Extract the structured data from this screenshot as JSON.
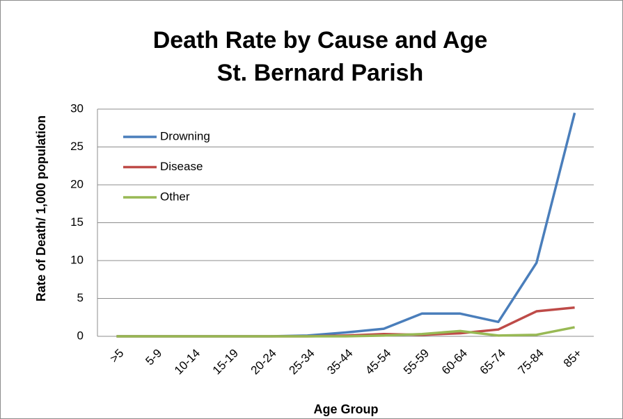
{
  "chart_data": {
    "type": "line",
    "title": "Death Rate by Cause and Age",
    "subtitle": "St. Bernard Parish",
    "x_label": "Age Group",
    "y_label": "Rate of Death/ 1,000 population",
    "categories": [
      ">5",
      "5-9",
      "10-14",
      "15-19",
      "20-24",
      "25-34",
      "35-44",
      "45-54",
      "55-59",
      "60-64",
      "65-74",
      "75-84",
      "85+"
    ],
    "series": [
      {
        "name": "Drowning",
        "color": "#4a7ebb",
        "values": [
          0,
          0,
          0,
          0,
          0,
          0.1,
          0.5,
          1.0,
          3.0,
          3.0,
          1.9,
          9.7,
          29.5
        ]
      },
      {
        "name": "Disease",
        "color": "#be4b48",
        "values": [
          0,
          0,
          0,
          0,
          0,
          0,
          0.1,
          0.3,
          0.2,
          0.4,
          0.9,
          3.3,
          3.8
        ]
      },
      {
        "name": "Other",
        "color": "#98b954",
        "values": [
          0,
          0,
          0,
          0,
          0,
          0,
          0,
          0.1,
          0.3,
          0.7,
          0.1,
          0.2,
          1.2
        ]
      }
    ],
    "ylim": [
      0,
      30
    ],
    "yticks": [
      0,
      5,
      10,
      15,
      20,
      25,
      30
    ],
    "grid": true,
    "legend": "top-left"
  }
}
